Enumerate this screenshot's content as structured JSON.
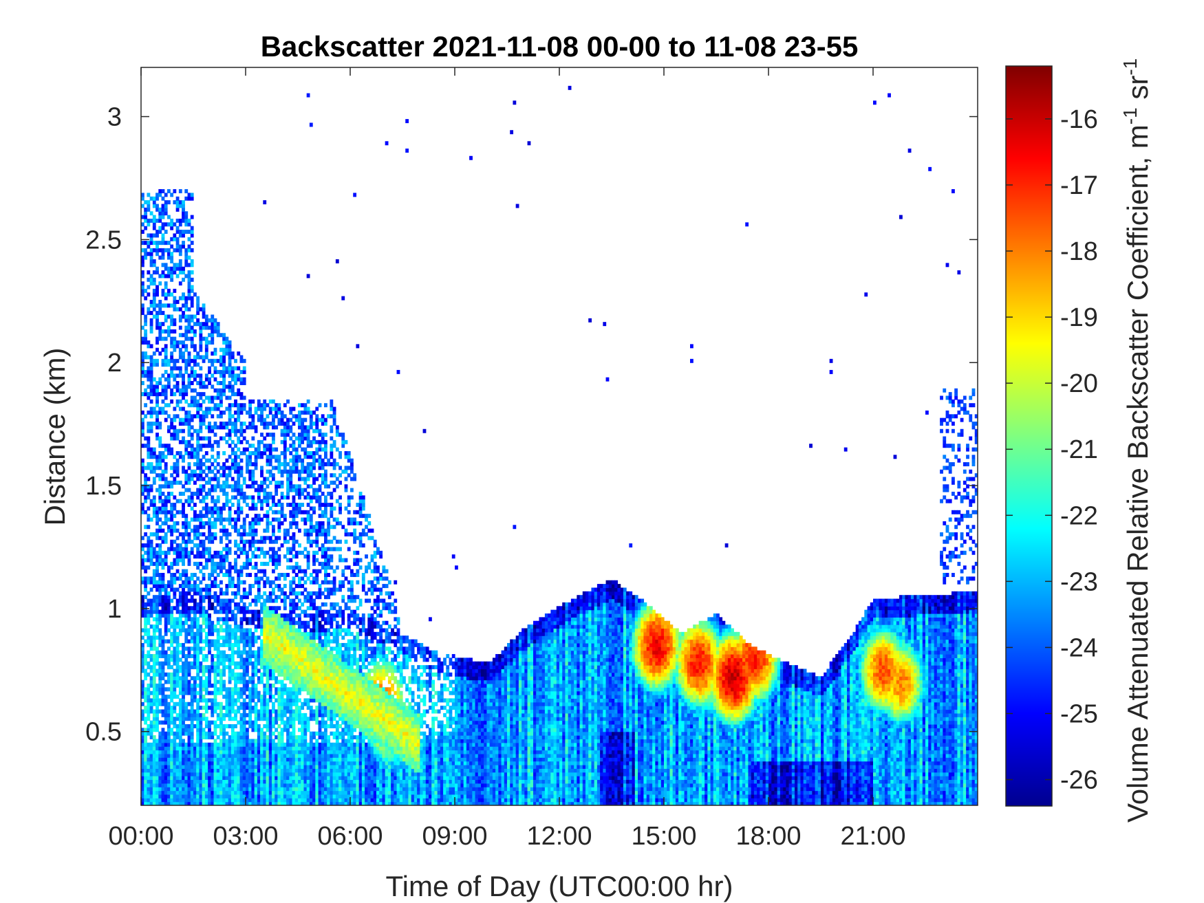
{
  "chart_data": {
    "type": "heatmap",
    "title": "Backscatter 2021-11-08 00-00 to 11-08 23-55",
    "xlabel": "Time of Day (UTC00:00 hr)",
    "ylabel": "Distance (km)",
    "colorbar_label": "Volume Attenuated Relative Backscatter Coefficient, m",
    "colorbar_label_sup1": "-1",
    "colorbar_label_mid": " sr",
    "colorbar_label_sup2": "-1",
    "colormap": "jet",
    "x_unit": "hours",
    "xlim": [
      0,
      24
    ],
    "ylim": [
      0.2,
      3.2
    ],
    "clim": [
      -26.4,
      -15.2
    ],
    "x_ticks": [
      {
        "value": 0,
        "label": "00:00"
      },
      {
        "value": 3,
        "label": "03:00"
      },
      {
        "value": 6,
        "label": "06:00"
      },
      {
        "value": 9,
        "label": "09:00"
      },
      {
        "value": 12,
        "label": "12:00"
      },
      {
        "value": 15,
        "label": "15:00"
      },
      {
        "value": 18,
        "label": "18:00"
      },
      {
        "value": 21,
        "label": "21:00"
      }
    ],
    "y_ticks": [
      {
        "value": 0.5,
        "label": "0.5"
      },
      {
        "value": 1,
        "label": "1"
      },
      {
        "value": 1.5,
        "label": "1.5"
      },
      {
        "value": 2,
        "label": "2"
      },
      {
        "value": 2.5,
        "label": "2.5"
      },
      {
        "value": 3,
        "label": "3"
      }
    ],
    "colorbar_ticks": [
      {
        "value": -26,
        "label": "-26"
      },
      {
        "value": -25,
        "label": "-25"
      },
      {
        "value": -24,
        "label": "-24"
      },
      {
        "value": -23,
        "label": "-23"
      },
      {
        "value": -22,
        "label": "-22"
      },
      {
        "value": -21,
        "label": "-21"
      },
      {
        "value": -20,
        "label": "-20"
      },
      {
        "value": -19,
        "label": "-19"
      },
      {
        "value": -18,
        "label": "-18"
      },
      {
        "value": -17,
        "label": "-17"
      },
      {
        "value": -16,
        "label": "-16"
      }
    ],
    "boundary_layer_top_km": [
      [
        0,
        1.05
      ],
      [
        1.5,
        1.07
      ],
      [
        3,
        1.0
      ],
      [
        4.5,
        0.98
      ],
      [
        6,
        1.0
      ],
      [
        7.5,
        0.9
      ],
      [
        8.5,
        0.82
      ],
      [
        10,
        0.78
      ],
      [
        11,
        0.92
      ],
      [
        12.5,
        1.05
      ],
      [
        13.5,
        1.12
      ],
      [
        14.5,
        1.02
      ],
      [
        15.5,
        0.9
      ],
      [
        16.5,
        0.98
      ],
      [
        17.5,
        0.85
      ],
      [
        18.5,
        0.78
      ],
      [
        19.5,
        0.72
      ],
      [
        20.5,
        0.92
      ],
      [
        21,
        1.04
      ],
      [
        24,
        1.07
      ]
    ],
    "intensity_cores": [
      {
        "t": 6.9,
        "km": 0.62,
        "value": -17.5
      },
      {
        "t": 7.1,
        "km": 0.52,
        "value": -19.0
      },
      {
        "t": 14.8,
        "km": 0.85,
        "value": -16.5
      },
      {
        "t": 16.0,
        "km": 0.78,
        "value": -16.8
      },
      {
        "t": 17.0,
        "km": 0.72,
        "value": -16.0
      },
      {
        "t": 17.6,
        "km": 0.8,
        "value": -16.8
      },
      {
        "t": 21.3,
        "km": 0.75,
        "value": -17.5
      },
      {
        "t": 21.8,
        "km": 0.7,
        "value": -18.0
      }
    ]
  }
}
